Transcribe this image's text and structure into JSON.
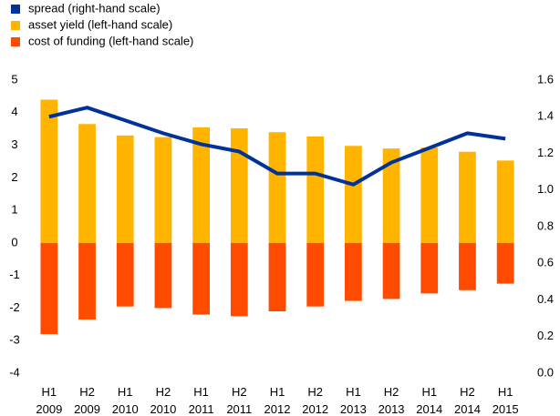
{
  "chart_data": {
    "type": "bar",
    "categories": [
      "H1 2009",
      "H2 2009",
      "H1 2010",
      "H2 2010",
      "H1 2011",
      "H2 2011",
      "H1 2012",
      "H2 2012",
      "H1 2013",
      "H2 2013",
      "H1 2014",
      "H2 2014",
      "H1 2015"
    ],
    "series": [
      {
        "name": "spread (right-hand scale)",
        "color": "#003299",
        "type": "line",
        "axis": "y2",
        "values": [
          1.4,
          1.45,
          1.38,
          1.31,
          1.25,
          1.21,
          1.09,
          1.09,
          1.03,
          1.15,
          1.23,
          1.31,
          1.28
        ]
      },
      {
        "name": "asset yield (left-hand scale)",
        "color": "#ffb400",
        "type": "bar",
        "values": [
          4.4,
          3.65,
          3.3,
          3.25,
          3.55,
          3.52,
          3.4,
          3.27,
          2.98,
          2.9,
          2.93,
          2.8,
          2.53
        ]
      },
      {
        "name": "cost of funding (left-hand scale)",
        "color": "#ff4b00",
        "type": "bar",
        "values": [
          -2.8,
          -2.35,
          -1.95,
          -2.0,
          -2.2,
          -2.25,
          -2.1,
          -1.95,
          -1.78,
          -1.72,
          -1.55,
          -1.45,
          -1.25
        ]
      }
    ],
    "ylim": [
      -4,
      5
    ],
    "yticks": [
      -4,
      -3,
      -2,
      -1,
      0,
      1,
      2,
      3,
      4,
      5
    ],
    "y2lim": [
      0,
      1.6
    ],
    "y2ticks": [
      {
        "value": 0,
        "label": "0.0"
      },
      0.2,
      0.4,
      0.6,
      0.8,
      {
        "value": 1,
        "label": "1.0"
      },
      1.2,
      1.4,
      1.6
    ],
    "grid": false,
    "legend": "top-left"
  }
}
